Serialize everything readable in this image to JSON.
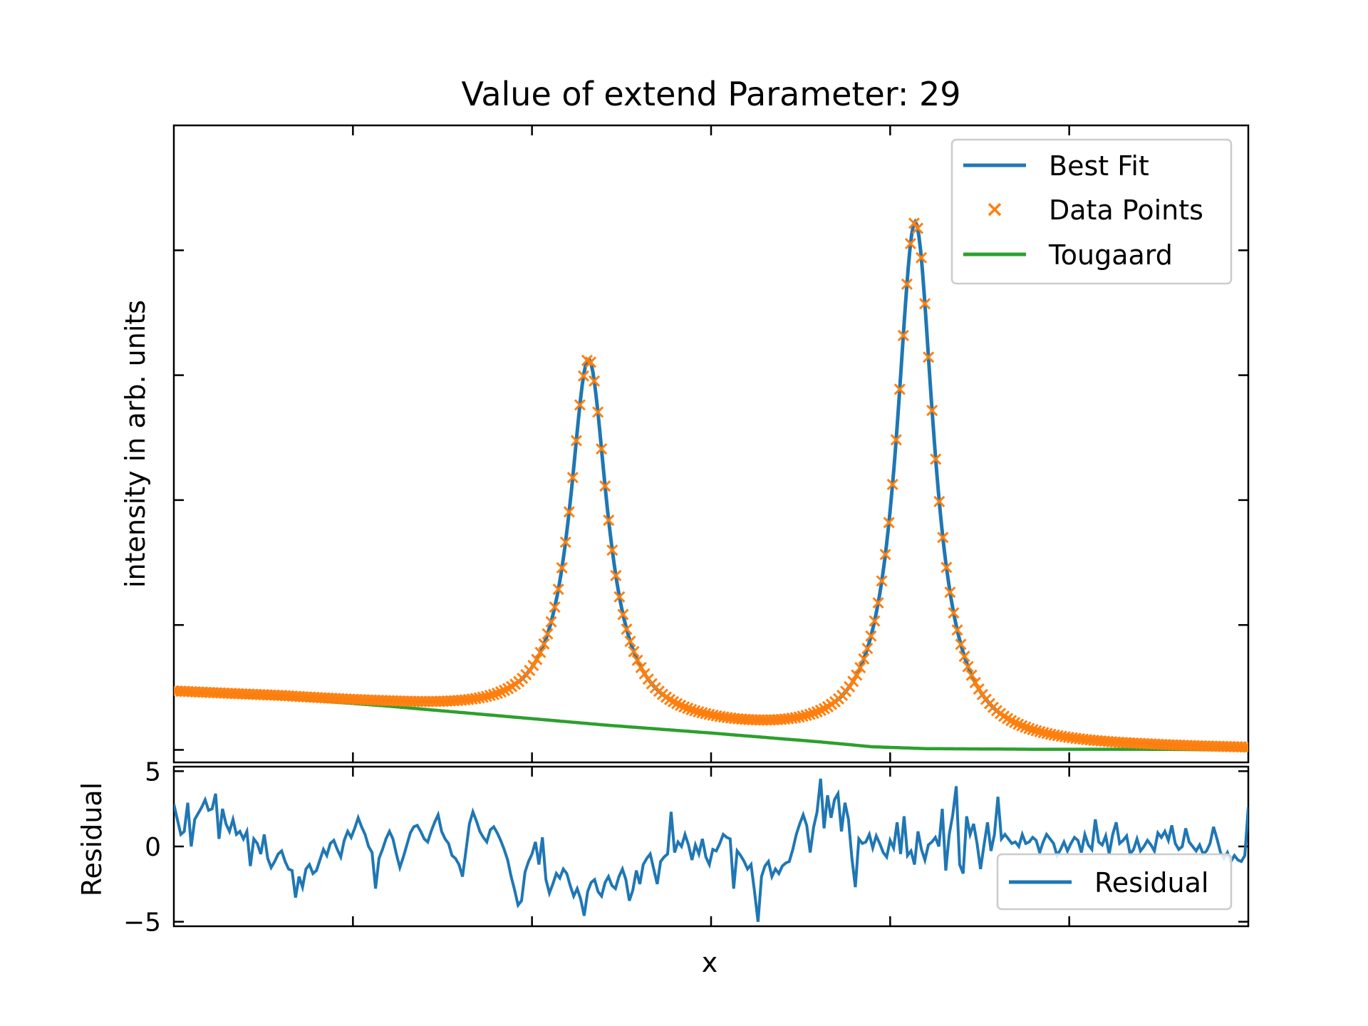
{
  "chart_data": [
    {
      "type": "line",
      "title": "Value of extend Parameter: 29",
      "xlabel": "",
      "ylabel": "intensity in arb. units",
      "xlim": [
        0,
        1
      ],
      "ylim": [
        -0.02,
        1.0
      ],
      "tick_labels_shown": false,
      "legend_position": "top-right",
      "colors": {
        "fit": "#1f77b4",
        "data": "#ff7f0e",
        "tougaard": "#2ca02c"
      },
      "peaks": [
        {
          "center": 0.386,
          "height": 0.58,
          "hwhm": 0.021
        },
        {
          "center": 0.69,
          "height": 0.84,
          "hwhm": 0.021
        }
      ],
      "series": [
        {
          "name": "Best Fit",
          "style": "line"
        },
        {
          "name": "Data Points",
          "style": "x-markers"
        },
        {
          "name": "Tougaard",
          "style": "line",
          "x": [
            0,
            0.1,
            0.2,
            0.3,
            0.4,
            0.5,
            0.6,
            0.65,
            0.7,
            0.8,
            0.9,
            1.0
          ],
          "values": [
            0.092,
            0.083,
            0.07,
            0.055,
            0.04,
            0.027,
            0.013,
            0.005,
            0.002,
            0.001,
            0.001,
            0.0
          ]
        }
      ]
    },
    {
      "type": "line",
      "xlabel": "x",
      "ylabel": "Residual",
      "xlim": [
        0,
        1
      ],
      "ylim": [
        -5.3,
        5.3
      ],
      "yticks": [
        -5,
        0,
        5
      ],
      "ytick_labels": [
        "−5",
        "0",
        "5"
      ],
      "legend_position": "bottom-right",
      "series": [
        {
          "name": "Residual",
          "values": [
            2.8,
            1.8,
            0.8,
            1.0,
            2.9,
            0.0,
            1.8,
            2.2,
            2.6,
            3.1,
            2.4,
            2.5,
            3.5,
            0.5,
            2.5,
            1.5,
            1.0,
            1.8,
            0.8,
            1.0,
            0.5,
            1.0,
            -1.3,
            0.5,
            0.2,
            -0.5,
            0.8,
            -0.8,
            -1.4,
            -1.0,
            -0.5,
            -0.3,
            -1.0,
            -1.5,
            -1.6,
            -3.4,
            -2.0,
            -2.7,
            -1.5,
            -1.2,
            -1.8,
            -1.6,
            -0.9,
            -0.2,
            -0.6,
            0.2,
            0.4,
            -0.2,
            -0.7,
            0.4,
            1.0,
            0.6,
            1.2,
            1.9,
            1.3,
            0.8,
            0.0,
            -0.4,
            -2.8,
            -0.8,
            -0.2,
            0.5,
            1.0,
            0.5,
            -0.5,
            -1.4,
            -0.7,
            0.1,
            0.9,
            1.3,
            1.4,
            1.0,
            0.5,
            0.3,
            1.0,
            1.6,
            2.1,
            1.0,
            0.5,
            0.2,
            -0.6,
            -0.8,
            -1.2,
            -2.0,
            -0.3,
            1.5,
            2.3,
            1.7,
            1.0,
            0.6,
            0.3,
            1.1,
            1.3,
            0.9,
            0.4,
            -0.2,
            -0.9,
            -2.0,
            -2.9,
            -3.9,
            -3.6,
            -1.7,
            -1.0,
            -0.5,
            0.3,
            -1.2,
            0.6,
            -2.2,
            -3.1,
            -2.5,
            -1.8,
            -2.1,
            -1.5,
            -1.8,
            -2.6,
            -3.3,
            -2.8,
            -3.5,
            -4.6,
            -3.0,
            -2.4,
            -2.2,
            -3.0,
            -3.3,
            -2.4,
            -2.0,
            -2.6,
            -2.8,
            -2.0,
            -1.5,
            -2.2,
            -3.6,
            -2.9,
            -1.6,
            -2.5,
            -1.2,
            -0.8,
            -0.5,
            -1.5,
            -2.5,
            -1.0,
            -0.7,
            -0.5,
            2.3,
            -0.4,
            0.3,
            0.0,
            0.8,
            0.1,
            -0.9,
            0.1,
            -0.5,
            0.5,
            -0.7,
            -1.2,
            -0.2,
            -0.3,
            0.2,
            0.8,
            0.6,
            0.5,
            -2.8,
            -0.3,
            -0.6,
            -1.0,
            -1.5,
            -1.2,
            -3.0,
            -5.0,
            -2.0,
            -1.3,
            -1.0,
            -2.0,
            -1.5,
            -1.8,
            -1.3,
            -1.1,
            -1.0,
            -0.2,
            0.8,
            1.5,
            2.1,
            1.4,
            -0.4,
            1.3,
            2.3,
            4.5,
            1.2,
            3.4,
            1.9,
            3.1,
            3.5,
            1.0,
            2.9,
            1.8,
            -0.8,
            -2.7,
            0.5,
            0.2,
            0.3,
            0.8,
            -0.1,
            0.7,
            0.2,
            -0.4,
            -0.7,
            0.4,
            -0.1,
            1.6,
            -0.5,
            2.0,
            -0.6,
            -0.3,
            -1.2,
            1.0,
            -0.2,
            -0.9,
            0.1,
            0.3,
            0.6,
            0.0,
            2.5,
            -1.6,
            0.8,
            2.1,
            4.0,
            -1.2,
            -1.8,
            2.0,
            0.8,
            1.5,
            0.2,
            -1.5,
            0.1,
            1.6,
            -0.3,
            0.8,
            3.3,
            0.5,
            0.8,
            0.5,
            0.2,
            0.3,
            0.0,
            0.8,
            0.2,
            0.3,
            0.6,
            0.4,
            -0.4,
            0.3,
            0.8,
            0.5,
            0.2,
            -0.6,
            -0.2,
            0.3,
            -0.3,
            0.2,
            0.6,
            0.4,
            -0.4,
            0.8,
            0.1,
            -0.2,
            1.8,
            0.3,
            0.1,
            0.7,
            -0.5,
            0.8,
            1.6,
            0.2,
            0.4,
            0.7,
            -0.5,
            -0.2,
            0.5,
            -0.3,
            0.0,
            0.4,
            0.1,
            -0.3,
            0.9,
            0.6,
            1.0,
            0.4,
            1.4,
            0.2,
            -0.2,
            0.0,
            1.2,
            0.3,
            0.0,
            -0.3,
            0.1,
            -0.5,
            -0.3,
            0.2,
            1.3,
            0.5,
            -0.4,
            -0.8,
            -0.4,
            -1.0,
            -0.6,
            -0.9,
            -1.0,
            -0.6,
            2.6
          ]
        }
      ]
    }
  ]
}
